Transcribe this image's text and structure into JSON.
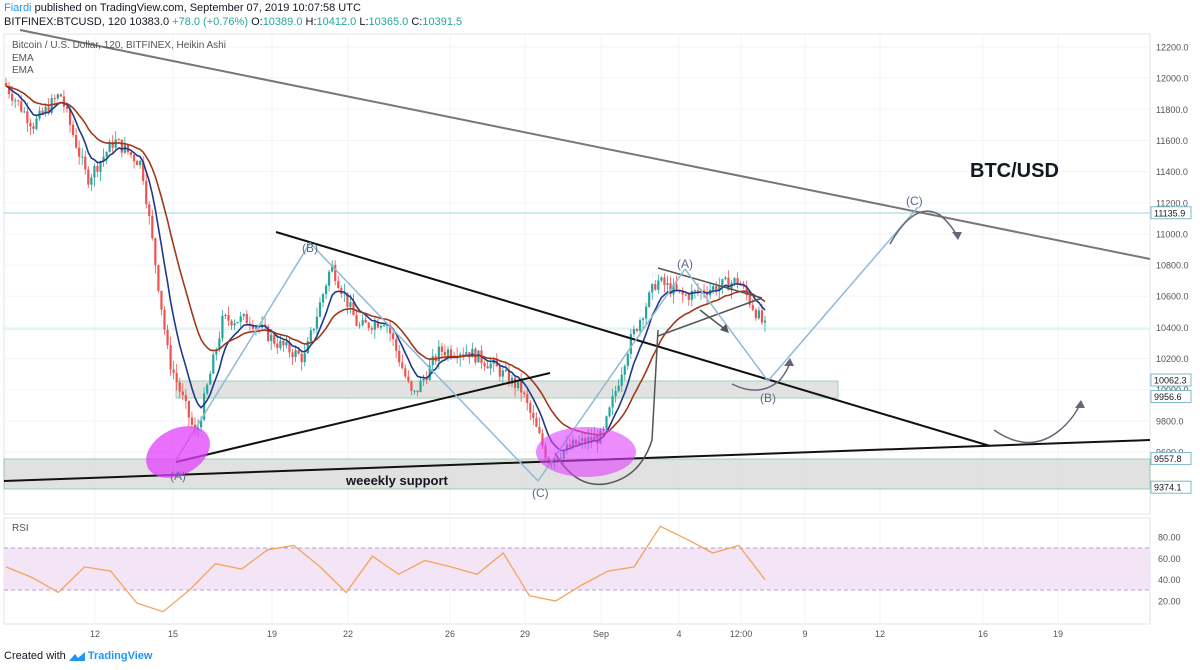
{
  "header": {
    "author": "Fiardi",
    "published": "published on TradingView.com, September 07, 2019 10:07:58 UTC",
    "symbol": "BITFINEX:BTCUSD, 120",
    "last": "10383.0",
    "change": "+78.0 (+0.76%)",
    "open_label": "O:",
    "open": "10389.0",
    "high_label": "H:",
    "high": "10412.0",
    "low_label": "L:",
    "low": "10365.0",
    "close_label": "C:",
    "close": "10391.5"
  },
  "legend": {
    "series_title": "Bitcoin / U.S. Dollar, 120, BITFINEX, Heikin Ashi",
    "ema1": "EMA",
    "ema2": "EMA"
  },
  "annotations": {
    "big_title": "BTC/USD",
    "weekly_support": "weeekly support",
    "wave_a1": "(A)",
    "wave_b1": "(B)",
    "wave_c1": "(C)",
    "wave_a2": "(A)",
    "wave_b2": "(B)",
    "wave_c2": "(C)"
  },
  "rsi": {
    "label": "RSI"
  },
  "footer": {
    "created_with": "Created with",
    "brand": "TradingView"
  },
  "colors": {
    "bull": "#26a69a",
    "bear": "#ef5350",
    "ema_fast": "#1e3a8a",
    "ema_slow": "#a0391a",
    "rsi_line": "#f5a35c",
    "rsi_band": "#f3e5f5",
    "highlight": "#e040fb",
    "support_zone": "#dcdcdc",
    "projection": "#90b9d6"
  },
  "chart_data": {
    "type": "candlestick",
    "title": "Bitcoin / U.S. Dollar, 120, BITFINEX, Heikin Ashi",
    "y_axis": {
      "min": 9300,
      "max": 12300,
      "ticks": [
        12200,
        12000,
        11800,
        11600,
        11400,
        11200,
        11000,
        10800,
        10600,
        10400,
        10200,
        10000,
        9800,
        9600
      ]
    },
    "price_labels": [
      "11135.9",
      "10062.3",
      "9956.6",
      "9557.8",
      "9374.1"
    ],
    "price_label_values": [
      11135.9,
      10062.3,
      9956.6,
      9557.8,
      9374.1
    ],
    "x_axis": {
      "ticks": [
        "12",
        "15",
        "19",
        "22",
        "26",
        "29",
        "Sep",
        "4",
        "12:00",
        "9",
        "12",
        "16",
        "19"
      ]
    },
    "price_path": [
      [
        11900,
        11950
      ],
      [
        11850,
        11700
      ],
      [
        11700,
        11900
      ],
      [
        11600,
        11350
      ],
      [
        11250,
        11600
      ],
      [
        11500,
        11450
      ],
      [
        11100,
        10200
      ],
      [
        10000,
        9700
      ],
      [
        9750,
        10450
      ],
      [
        10050,
        10450
      ],
      [
        10350,
        10300
      ],
      [
        10500,
        10200
      ],
      [
        10300,
        10800
      ],
      [
        10800,
        10400
      ],
      [
        10050,
        10450
      ],
      [
        10400,
        9950
      ],
      [
        10150,
        10250
      ],
      [
        10200,
        10250
      ],
      [
        10100,
        10150
      ],
      [
        10200,
        10000
      ],
      [
        9800,
        9550
      ],
      [
        9600,
        9650
      ],
      [
        9650,
        9700
      ],
      [
        9700,
        10300
      ],
      [
        10500,
        10700
      ],
      [
        10500,
        10600
      ],
      [
        10550,
        10650
      ],
      [
        10900,
        10700
      ],
      [
        10500,
        10400
      ]
    ],
    "rsi": {
      "ticks": [
        80,
        60,
        40,
        20
      ],
      "band": [
        30,
        70
      ],
      "values": [
        52,
        42,
        28,
        52,
        48,
        18,
        10,
        30,
        55,
        50,
        68,
        72,
        52,
        28,
        62,
        45,
        58,
        52,
        45,
        65,
        25,
        20,
        35,
        48,
        52,
        90,
        78,
        65,
        72,
        40
      ]
    }
  }
}
